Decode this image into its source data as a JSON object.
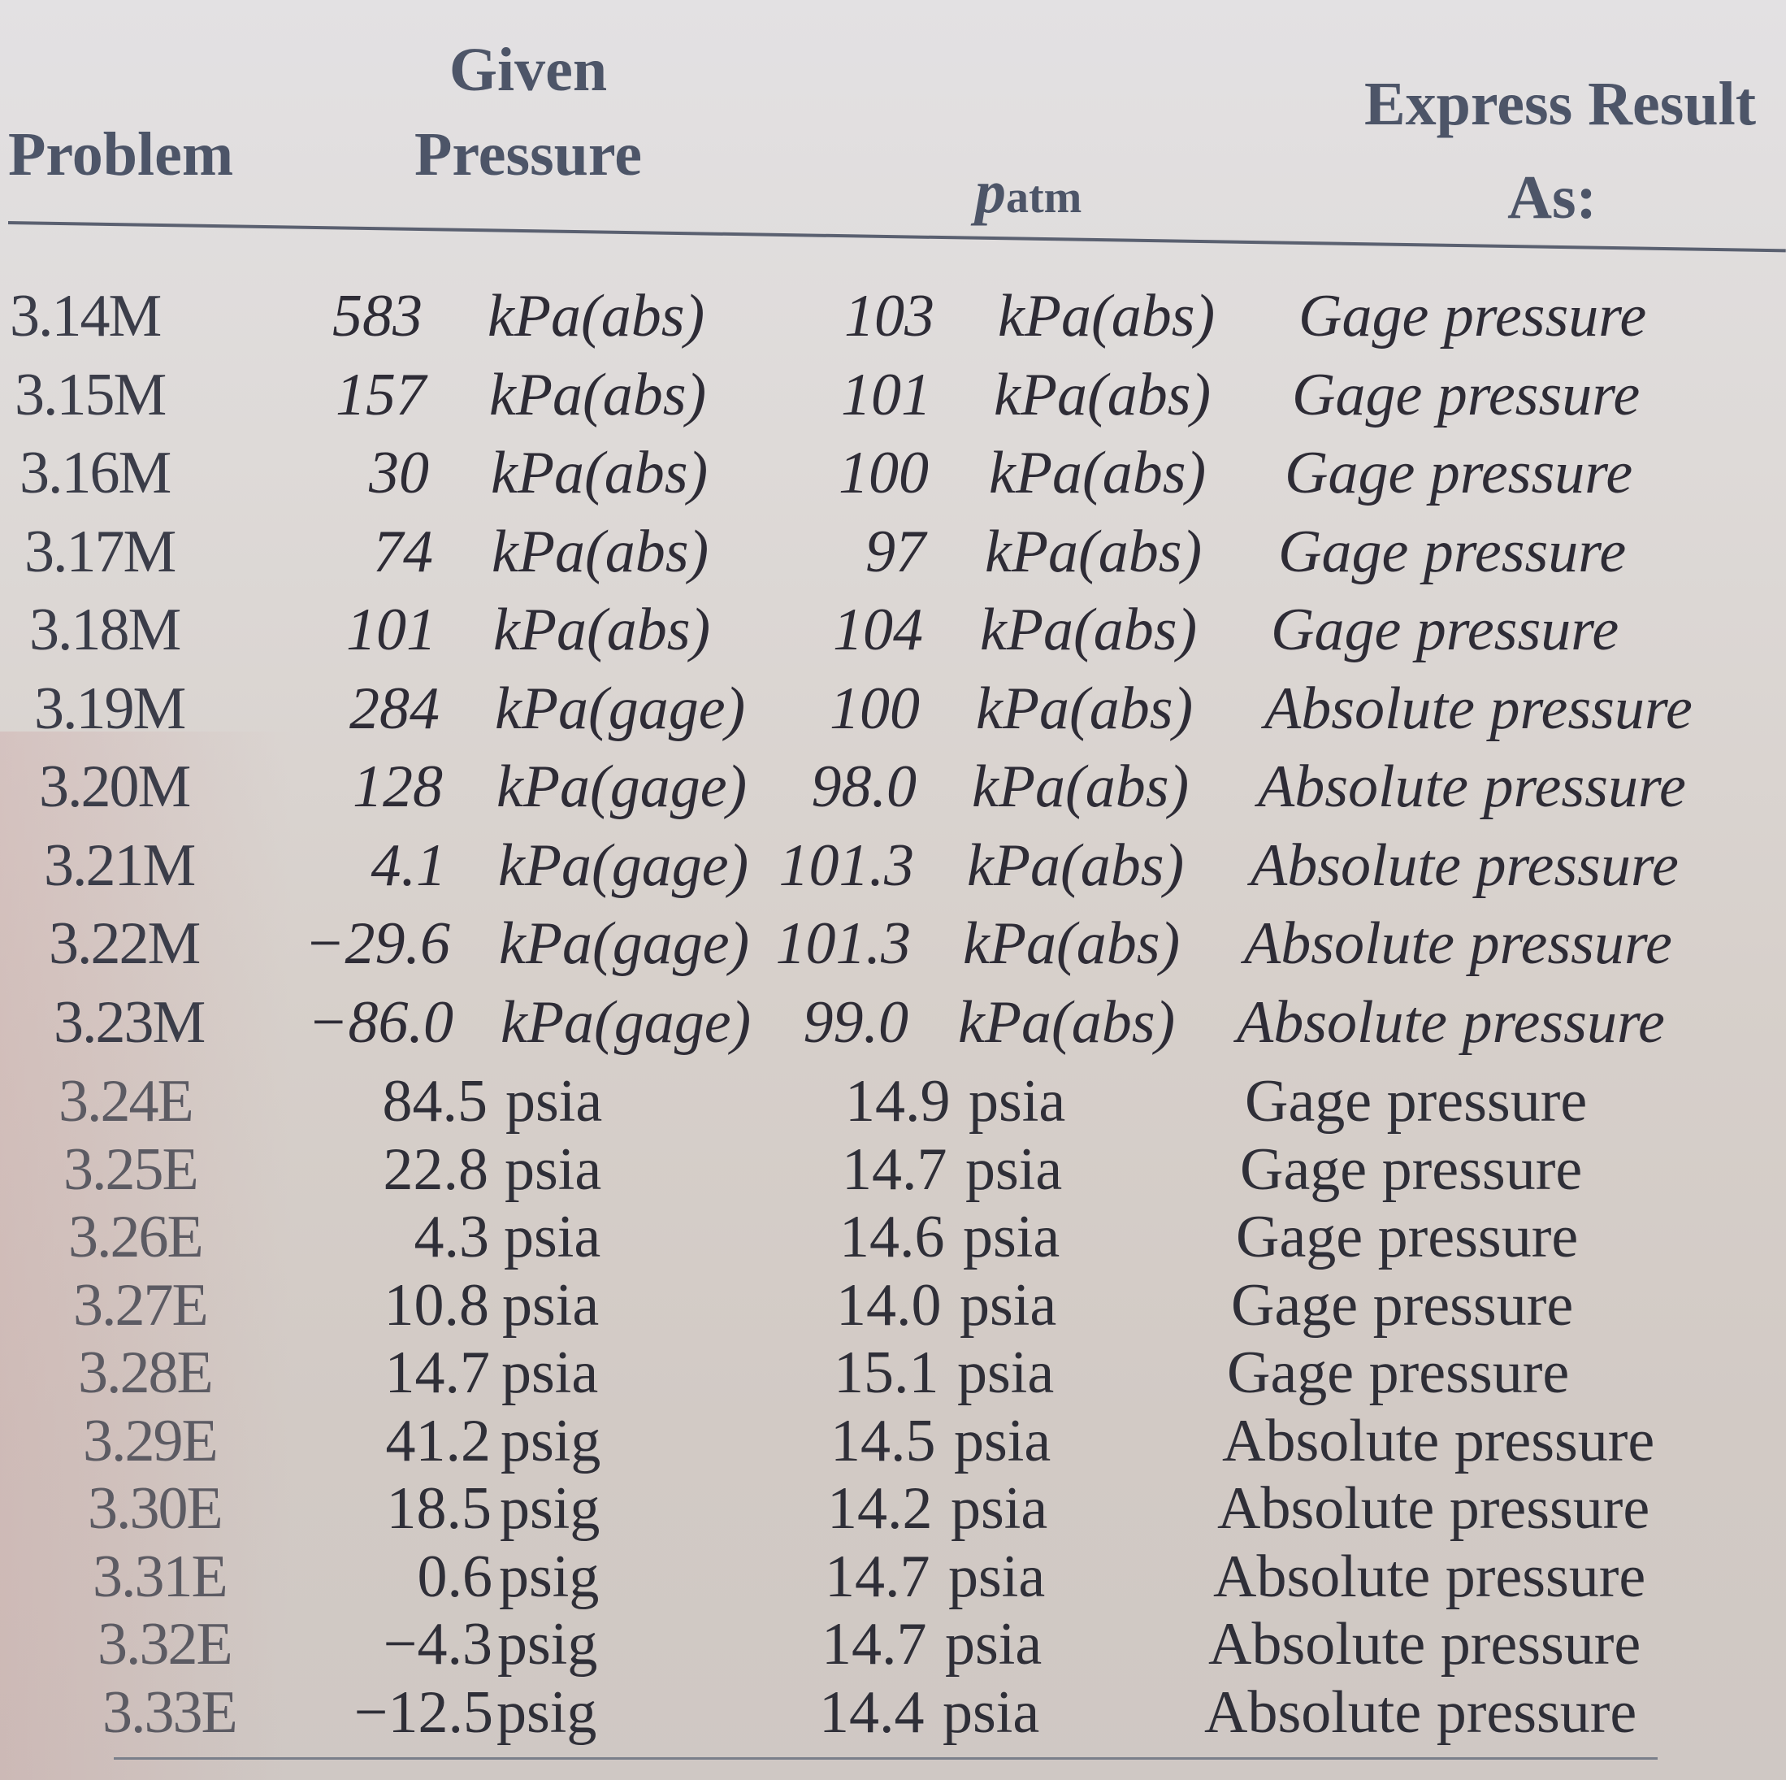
{
  "headers": {
    "problem": "Problem",
    "given_line1": "Given",
    "given_line2": "Pressure",
    "patm_p": "p",
    "patm_sub": "atm",
    "express_line1": "Express Result",
    "express_line2": "As:"
  },
  "rows": [
    {
      "problem": "3.14M",
      "given_value": "583",
      "given_unit": "kPa(abs)",
      "patm_value": "103",
      "patm_unit": "kPa(abs)",
      "result": "Gage pressure"
    },
    {
      "problem": "3.15M",
      "given_value": "157",
      "given_unit": "kPa(abs)",
      "patm_value": "101",
      "patm_unit": "kPa(abs)",
      "result": "Gage pressure"
    },
    {
      "problem": "3.16M",
      "given_value": "30",
      "given_unit": "kPa(abs)",
      "patm_value": "100",
      "patm_unit": "kPa(abs)",
      "result": "Gage pressure"
    },
    {
      "problem": "3.17M",
      "given_value": "74",
      "given_unit": "kPa(abs)",
      "patm_value": "97",
      "patm_unit": "kPa(abs)",
      "result": "Gage pressure"
    },
    {
      "problem": "3.18M",
      "given_value": "101",
      "given_unit": "kPa(abs)",
      "patm_value": "104",
      "patm_unit": "kPa(abs)",
      "result": "Gage pressure"
    },
    {
      "problem": "3.19M",
      "given_value": "284",
      "given_unit": "kPa(gage)",
      "patm_value": "100",
      "patm_unit": "kPa(abs)",
      "result": "Absolute pressure"
    },
    {
      "problem": "3.20M",
      "given_value": "128",
      "given_unit": "kPa(gage)",
      "patm_value": "98.0",
      "patm_unit": "kPa(abs)",
      "result": "Absolute pressure"
    },
    {
      "problem": "3.21M",
      "given_value": "4.1",
      "given_unit": "kPa(gage)",
      "patm_value": "101.3",
      "patm_unit": "kPa(abs)",
      "result": "Absolute pressure"
    },
    {
      "problem": "3.22M",
      "given_value": "−29.6",
      "given_unit": "kPa(gage)",
      "patm_value": "101.3",
      "patm_unit": "kPa(abs)",
      "result": "Absolute pressure"
    },
    {
      "problem": "3.23M",
      "given_value": "−86.0",
      "given_unit": "kPa(gage)",
      "patm_value": "99.0",
      "patm_unit": "kPa(abs)",
      "result": "Absolute pressure"
    },
    {
      "problem": "3.24E",
      "given_value": "84.5",
      "given_unit": "psia",
      "patm_value": "14.9",
      "patm_unit": "psia",
      "result": "Gage pressure"
    },
    {
      "problem": "3.25E",
      "given_value": "22.8",
      "given_unit": "psia",
      "patm_value": "14.7",
      "patm_unit": "psia",
      "result": "Gage pressure"
    },
    {
      "problem": "3.26E",
      "given_value": "4.3",
      "given_unit": "psia",
      "patm_value": "14.6",
      "patm_unit": "psia",
      "result": "Gage pressure"
    },
    {
      "problem": "3.27E",
      "given_value": "10.8",
      "given_unit": "psia",
      "patm_value": "14.0",
      "patm_unit": "psia",
      "result": "Gage pressure"
    },
    {
      "problem": "3.28E",
      "given_value": "14.7",
      "given_unit": "psia",
      "patm_value": "15.1",
      "patm_unit": "psia",
      "result": "Gage pressure"
    },
    {
      "problem": "3.29E",
      "given_value": "41.2",
      "given_unit": "psig",
      "patm_value": "14.5",
      "patm_unit": "psia",
      "result": "Absolute pressure"
    },
    {
      "problem": "3.30E",
      "given_value": "18.5",
      "given_unit": "psig",
      "patm_value": "14.2",
      "patm_unit": "psia",
      "result": "Absolute pressure"
    },
    {
      "problem": "3.31E",
      "given_value": "0.6",
      "given_unit": "psig",
      "patm_value": "14.7",
      "patm_unit": "psia",
      "result": "Absolute pressure"
    },
    {
      "problem": "3.32E",
      "given_value": "−4.3",
      "given_unit": "psig",
      "patm_value": "14.7",
      "patm_unit": "psia",
      "result": "Absolute pressure"
    },
    {
      "problem": "3.33E",
      "given_value": "−12.5",
      "given_unit": "psig",
      "patm_value": "14.4",
      "patm_unit": "psia",
      "result": "Absolute pressure"
    }
  ]
}
